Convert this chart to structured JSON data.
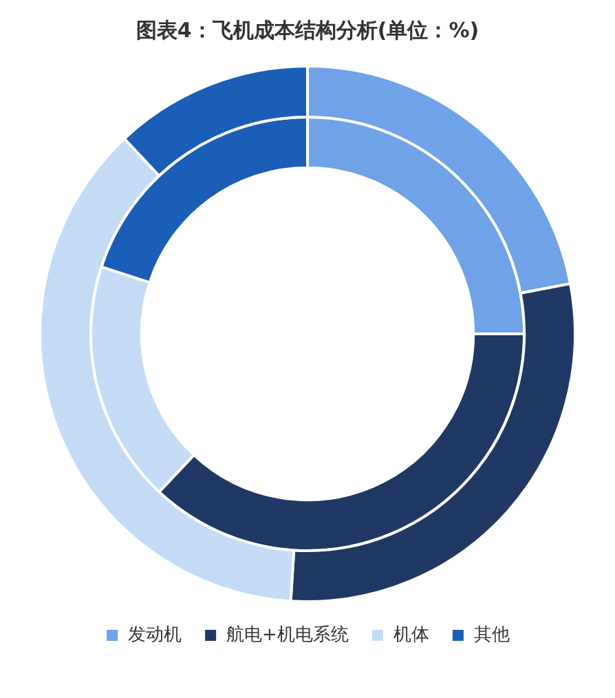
{
  "chart_data": {
    "type": "donut",
    "title": "图表4：飞机成本结构分析(单位：%)",
    "categories": [
      "发动机",
      "航电+机电系统",
      "机体",
      "其他"
    ],
    "colors": [
      "#6fa2e6",
      "#1f3864",
      "#c5dcf7",
      "#1b5eb8"
    ],
    "series": [
      {
        "values": [
          22,
          29,
          37,
          12
        ]
      },
      {
        "values": [
          25,
          37,
          18,
          20
        ]
      }
    ],
    "legend": "bottom"
  }
}
